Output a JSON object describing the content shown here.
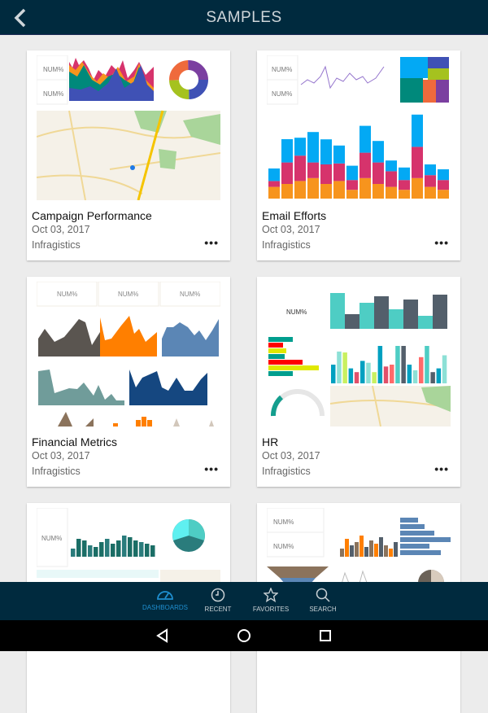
{
  "header": {
    "title": "SAMPLES",
    "back_icon": "chevron-left-icon"
  },
  "cards": [
    {
      "title": "Campaign Performance",
      "date": "Oct 03, 2017",
      "author": "Infragistics",
      "kpi": [
        "NUM%",
        "NUM%"
      ]
    },
    {
      "title": "Email Efforts",
      "date": "Oct 03, 2017",
      "author": "Infragistics",
      "kpi": [
        "NUM%",
        "NUM%"
      ]
    },
    {
      "title": "Financial Metrics",
      "date": "Oct 03, 2017",
      "author": "Infragistics",
      "kpi": [
        "NUM%",
        "NUM%",
        "NUM%"
      ]
    },
    {
      "title": "HR",
      "date": "Oct 03, 2017",
      "author": "Infragistics",
      "kpi": [
        "NUM%"
      ]
    },
    {
      "title": "",
      "date": "",
      "author": "",
      "kpi": [
        "NUM%"
      ]
    },
    {
      "title": "",
      "date": "",
      "author": "",
      "kpi": [
        "NUM%",
        "NUM%"
      ]
    }
  ],
  "more_label": "•••",
  "bottom_nav": [
    {
      "label": "DASHBOARDS",
      "icon": "gauge-icon",
      "active": true
    },
    {
      "label": "RECENT",
      "icon": "clock-icon",
      "active": false
    },
    {
      "label": "FAVORITES",
      "icon": "star-icon",
      "active": false
    },
    {
      "label": "SEARCH",
      "icon": "search-icon",
      "active": false
    }
  ],
  "colors": {
    "header_bg": "#002a3e",
    "accent": "#1f8fd0",
    "background": "#ececec"
  }
}
